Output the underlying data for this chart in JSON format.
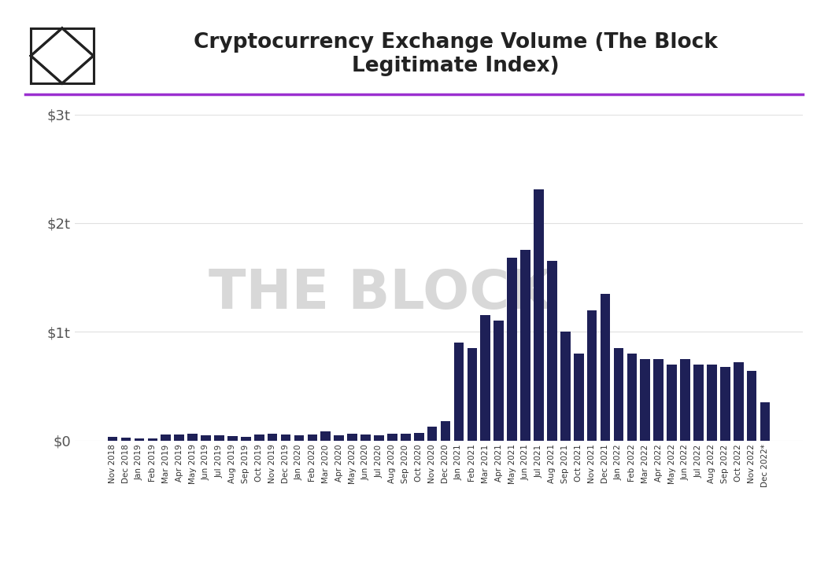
{
  "title": "Cryptocurrency Exchange Volume (The Block\nLegitimate Index)",
  "bar_color": "#1e2057",
  "background_color": "#ffffff",
  "title_color": "#222222",
  "watermark_text": "THE BLOCK",
  "watermark_color": "#d8d8d8",
  "purple_line_color": "#9b30d0",
  "grid_color": "#e0e0e0",
  "ylabel_color": "#555555",
  "ylim_max": 3000,
  "ytick_labels": [
    "$0",
    "$1t",
    "$2t",
    "$3t"
  ],
  "ytick_values": [
    0,
    1000,
    2000,
    3000
  ],
  "labels": [
    "Nov 2018",
    "Dec 2018",
    "Jan 2019",
    "Feb 2019",
    "Mar 2019",
    "Apr 2019",
    "May 2019",
    "Jun 2019",
    "Jul 2019",
    "Aug 2019",
    "Sep 2019",
    "Oct 2019",
    "Nov 2019",
    "Dec 2019",
    "Jan 2020",
    "Feb 2020",
    "Mar 2020",
    "Apr 2020",
    "May 2020",
    "Jun 2020",
    "Jul 2020",
    "Aug 2020",
    "Sep 2020",
    "Oct 2020",
    "Nov 2020",
    "Dec 2020",
    "Jan 2021",
    "Feb 2021",
    "Mar 2021",
    "Apr 2021",
    "May 2021",
    "Jun 2021",
    "Jul 2021",
    "Aug 2021",
    "Sep 2021",
    "Oct 2021",
    "Nov 2021",
    "Dec 2021",
    "Jan 2022",
    "Feb 2022",
    "Mar 2022",
    "Apr 2022",
    "May 2022",
    "Jun 2022",
    "Jul 2022",
    "Aug 2022",
    "Sep 2022",
    "Oct 2022",
    "Nov 2022",
    "Dec 2022*"
  ],
  "values": [
    30,
    25,
    20,
    18,
    55,
    55,
    65,
    50,
    45,
    40,
    30,
    55,
    60,
    55,
    45,
    55,
    80,
    50,
    60,
    55,
    45,
    65,
    60,
    70,
    130,
    180,
    900,
    850,
    1150,
    1100,
    1680,
    1750,
    2310,
    1650,
    1000,
    800,
    1200,
    1350,
    850,
    800,
    750,
    750,
    700,
    750,
    700,
    700,
    680,
    720,
    640,
    350
  ],
  "figsize": [
    10.52,
    7.28
  ],
  "dpi": 100
}
